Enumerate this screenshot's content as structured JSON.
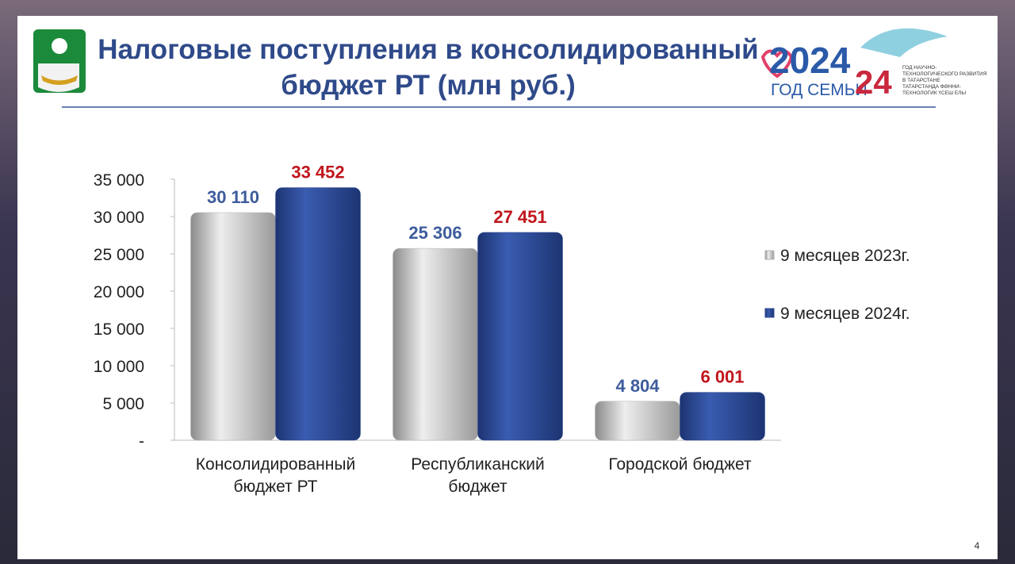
{
  "chart_data": {
    "type": "bar",
    "title": "Налоговые поступления в консолидированный бюджет РТ (млн руб.)",
    "categories": [
      "Консолидированный бюджет РТ",
      "Республиканский бюджет",
      "Городской бюджет"
    ],
    "series": [
      {
        "name": "9 месяцев 2023г.",
        "color": "#b4b4b4",
        "label_color": "#3d5c9c",
        "values": [
          30110,
          25306,
          4804
        ],
        "value_labels": [
          "30 110",
          "25 306",
          "4 804"
        ]
      },
      {
        "name": "9 месяцев 2024г.",
        "color": "#2b4a94",
        "label_color": "#c0161c",
        "values": [
          33452,
          27451,
          6001
        ],
        "value_labels": [
          "33 452",
          "27 451",
          "6 001"
        ]
      }
    ],
    "ylim": [
      0,
      35000
    ],
    "yticks": [
      {
        "value": 0,
        "label": "-"
      },
      {
        "value": 5000,
        "label": "5 000"
      },
      {
        "value": 10000,
        "label": "10 000"
      },
      {
        "value": 15000,
        "label": "15 000"
      },
      {
        "value": 20000,
        "label": "20 000"
      },
      {
        "value": 25000,
        "label": "25 000"
      },
      {
        "value": 30000,
        "label": "30 000"
      },
      {
        "value": 35000,
        "label": "35 000"
      }
    ],
    "grid": false,
    "legend": "right"
  },
  "logos": {
    "year": "2024",
    "family": "ГОД СЕМЬИ",
    "science_year": "24",
    "science_ru": "ГОД НАУЧНО-ТЕХНОЛОГИЧЕСКОГО РАЗВИТИЯ В ТАТАРСТАНЕ",
    "science_tt": "ТАТАРСТАНДА ФӘННИ-ТЕХНОЛОГИК ҮСЕШ ЕЛЫ"
  },
  "page_number": "4"
}
